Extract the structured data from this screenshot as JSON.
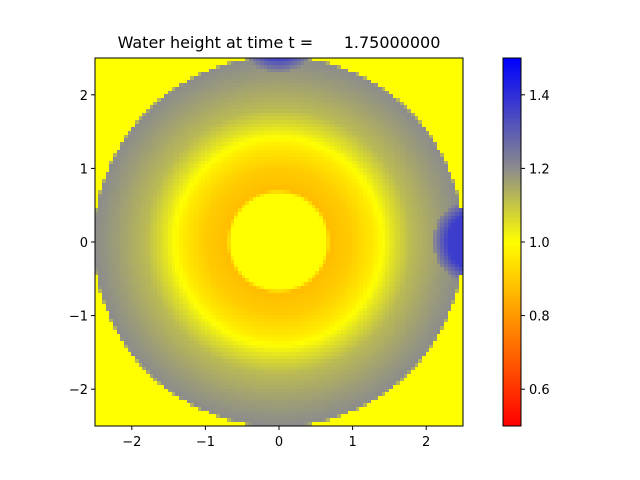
{
  "chart_data": {
    "type": "heatmap",
    "title": "Water height at time t =      1.75000000",
    "xlabel": "",
    "ylabel": "",
    "xlim": [
      -2.5,
      2.5
    ],
    "ylim": [
      -2.5,
      2.5
    ],
    "x_ticks": [
      -2,
      -1,
      0,
      1,
      2
    ],
    "y_ticks": [
      -2,
      -1,
      0,
      1,
      2
    ],
    "x_tick_labels": [
      "−2",
      "−1",
      "0",
      "1",
      "2"
    ],
    "y_tick_labels": [
      "−2",
      "−1",
      "0",
      "1",
      "2"
    ],
    "colorbar": {
      "min": 0.5,
      "max": 1.5,
      "ticks": [
        0.6,
        0.8,
        1.0,
        1.2,
        1.4
      ],
      "tick_labels": [
        "0.6",
        "0.8",
        "1.0",
        "1.2",
        "1.4"
      ],
      "colormap": [
        {
          "value": 0.5,
          "color": "#ff0000"
        },
        {
          "value": 0.8,
          "color": "#ff9900"
        },
        {
          "value": 1.0,
          "color": "#ffff00"
        },
        {
          "value": 1.2,
          "color": "#8c8c8c"
        },
        {
          "value": 1.5,
          "color": "#0000ff"
        }
      ]
    },
    "field": {
      "description_points": [
        {
          "r": 0.0,
          "h": 1.0
        },
        {
          "r": 0.65,
          "h": 1.0
        },
        {
          "r": 0.7,
          "h": 0.87
        },
        {
          "r": 1.0,
          "h": 0.9
        },
        {
          "r": 1.3,
          "h": 0.96
        },
        {
          "r": 1.55,
          "h": 1.05
        },
        {
          "r": 1.8,
          "h": 1.12
        },
        {
          "r": 2.2,
          "h": 1.17
        },
        {
          "r": 2.5,
          "h": 1.2
        },
        {
          "r": 2.55,
          "h": 1.0
        }
      ],
      "bumps": [
        {
          "cx": 2.7,
          "cy": 0.0,
          "r": 0.6,
          "h": 1.37
        },
        {
          "cx": 0.0,
          "cy": 2.9,
          "r": 0.6,
          "h": 1.37
        }
      ]
    }
  }
}
